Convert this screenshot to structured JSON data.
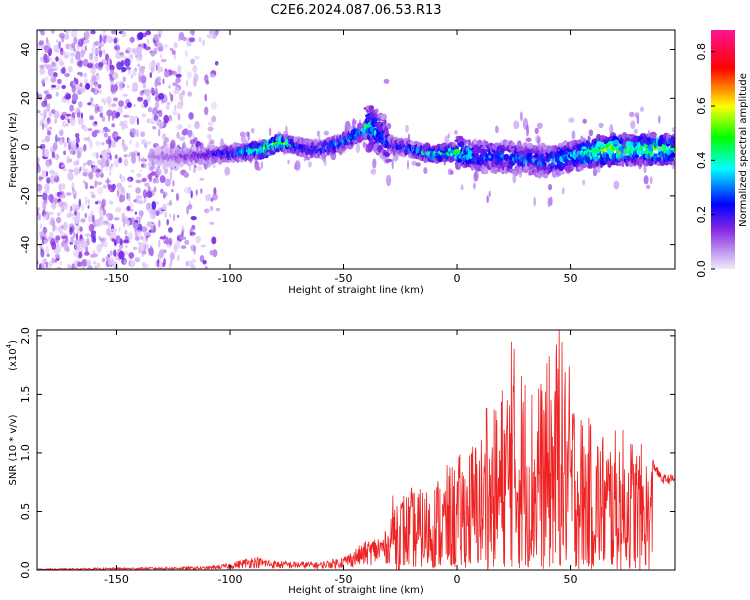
{
  "title": "C2E6.2024.087.06.53.R13",
  "chart_data": [
    {
      "type": "heatmap",
      "xlabel": "Height of straight line (km)",
      "ylabel": "Frequency (Hz)",
      "xlim": [
        -185,
        96
      ],
      "ylim": [
        -50,
        48
      ],
      "x_ticks": [
        "-150",
        "-100",
        "-50",
        "0",
        "50"
      ],
      "x_tick_values": [
        -150,
        -100,
        -50,
        0,
        50
      ],
      "y_ticks": [
        "-40",
        "-20",
        "0",
        "20",
        "40"
      ],
      "y_tick_values": [
        -40,
        -20,
        0,
        20,
        40
      ],
      "colorbar": {
        "label": "Normalized spectral amplitude",
        "range": [
          0,
          0.88
        ],
        "ticks": [
          "0.0",
          "0.2",
          "0.4",
          "0.6",
          "0.8"
        ],
        "tick_values": [
          0.0,
          0.2,
          0.4,
          0.6,
          0.8
        ],
        "colors": [
          "#e8d8f8",
          "#8a2be2",
          "#0000ff",
          "#00ffff",
          "#00ff00",
          "#ffff00",
          "#ff0000",
          "#ff1493"
        ]
      },
      "ridge": {
        "x": [
          -135,
          -120,
          -105,
          -95,
          -85,
          -78,
          -70,
          -60,
          -50,
          -44,
          -38,
          -34,
          -30,
          -20,
          -10,
          0,
          10,
          20,
          30,
          40,
          50,
          60,
          70,
          80,
          90,
          96
        ],
        "freq_hz": [
          -4,
          -4,
          -3,
          -2,
          -1,
          2,
          0,
          -1,
          2,
          5,
          8,
          6,
          1,
          -1,
          -3,
          -2,
          -4,
          -4,
          -5,
          -6,
          -4,
          -2,
          -1,
          -1,
          -1,
          -1
        ],
        "amplitude": [
          0.08,
          0.15,
          0.22,
          0.35,
          0.55,
          0.6,
          0.3,
          0.3,
          0.35,
          0.4,
          0.45,
          0.3,
          0.25,
          0.3,
          0.45,
          0.45,
          0.3,
          0.3,
          0.3,
          0.3,
          0.35,
          0.5,
          0.55,
          0.45,
          0.55,
          0.4
        ]
      },
      "noise_region_x": [
        -185,
        -105
      ]
    },
    {
      "type": "line",
      "xlabel": "Height of straight line (km)",
      "ylabel": "SNR (10 * v/v)",
      "y_multiplier_label": "(x10",
      "y_multiplier_exp": "4",
      "xlim": [
        -185,
        96
      ],
      "ylim": [
        0,
        2.05
      ],
      "x_ticks": [
        "-150",
        "-100",
        "-50",
        "0",
        "50"
      ],
      "x_tick_values": [
        -150,
        -100,
        -50,
        0,
        50
      ],
      "y_ticks": [
        "0.0",
        "0.5",
        "1.0",
        "1.5",
        "2.0"
      ],
      "y_tick_values": [
        0.0,
        0.5,
        1.0,
        1.5,
        2.0
      ],
      "line_color": "#ee2222",
      "envelope": {
        "x": [
          -185,
          -110,
          -100,
          -90,
          -80,
          -60,
          -50,
          -40,
          -30,
          -28,
          -15,
          0,
          15,
          25,
          35,
          45,
          55,
          65,
          75,
          86,
          90,
          96
        ],
        "y": [
          0.01,
          0.03,
          0.06,
          0.12,
          0.08,
          0.07,
          0.12,
          0.25,
          0.35,
          0.68,
          0.7,
          0.95,
          1.3,
          1.95,
          1.55,
          2.05,
          1.35,
          1.2,
          1.2,
          0.95,
          0.8,
          0.8
        ]
      },
      "peaks": [
        {
          "x": 24,
          "y": 1.95
        },
        {
          "x": 45,
          "y": 2.05
        },
        {
          "x": 13,
          "y": 1.38
        },
        {
          "x": 36,
          "y": 1.55
        }
      ]
    }
  ]
}
